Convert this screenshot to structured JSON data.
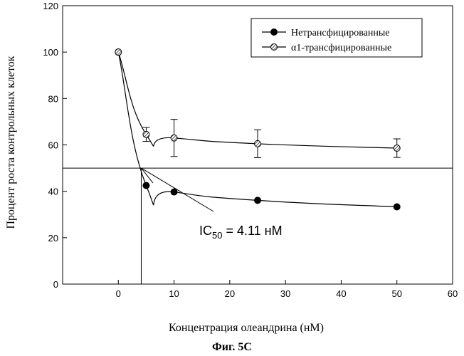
{
  "chart_data": {
    "type": "line",
    "xlabel": "Концентрация олеандрина (нМ)",
    "ylabel": "Процент роста контрольных клеток",
    "xlim": [
      -10,
      60
    ],
    "ylim": [
      0,
      120
    ],
    "xticks": [
      0,
      10,
      20,
      30,
      40,
      50,
      60
    ],
    "yticks": [
      0,
      20,
      40,
      60,
      80,
      100,
      120
    ],
    "legend_position": "top-right",
    "series": [
      {
        "name": "Нетрансфицированные",
        "marker": "filled-circle",
        "color": "#000000",
        "x": [
          0,
          5,
          10,
          25,
          50
        ],
        "y": [
          100,
          42.5,
          39.7,
          36.1,
          33.3
        ]
      },
      {
        "name": "α1-трансфицированные",
        "marker": "hatched-circle",
        "color": "#000000",
        "x": [
          0,
          5,
          10,
          25,
          50
        ],
        "y": [
          100,
          64.5,
          63,
          60.5,
          58.6
        ],
        "error": [
          0,
          3,
          8,
          6,
          4
        ]
      }
    ],
    "reference_lines": {
      "horizontal_y": 50,
      "vertical_x": 4.11
    },
    "annotation": {
      "ic_main": "IC",
      "ic_sub": "50",
      "ic_value": " = 4.11 нМ"
    },
    "caption": "Фиг. 5С"
  }
}
